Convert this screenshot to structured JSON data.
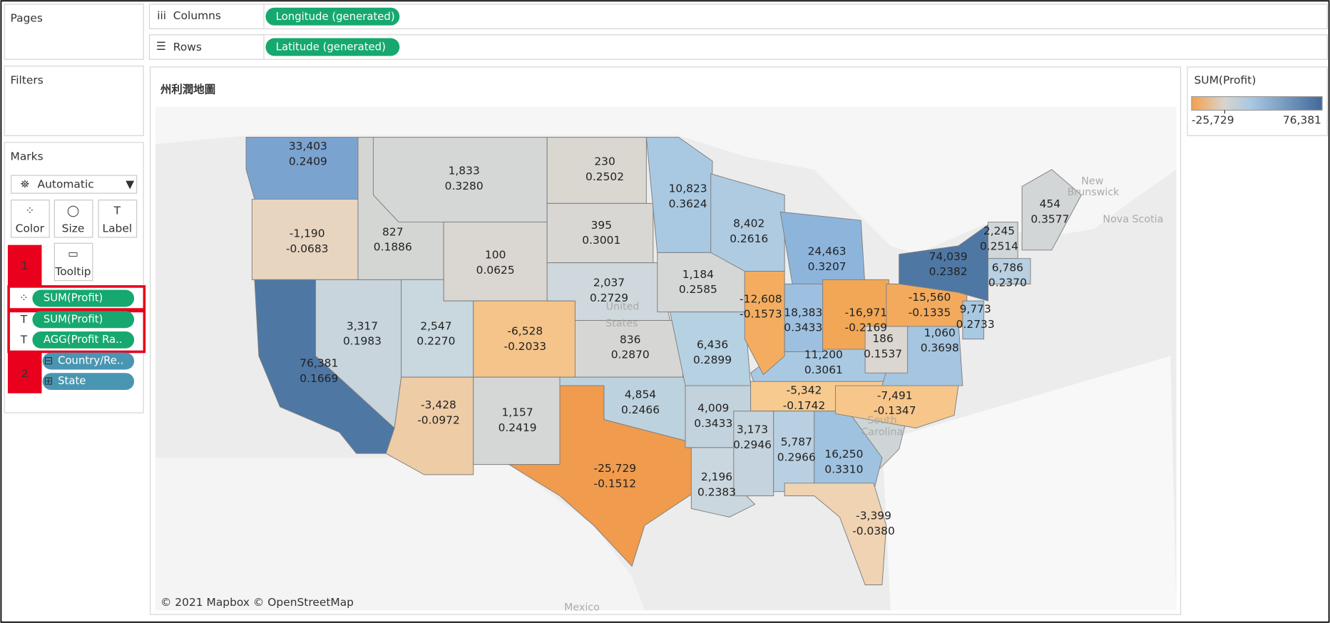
{
  "shelves": {
    "columns_label": "Columns",
    "columns_pill": "Longitude (generated)",
    "rows_label": "Rows",
    "rows_pill": "Latitude (generated)"
  },
  "left_panel": {
    "pages": "Pages",
    "filters": "Filters",
    "marks": "Marks",
    "mark_type": "Automatic",
    "buttons": [
      "Color",
      "Size",
      "Label",
      "Tooltip"
    ],
    "pills": [
      "SUM(Profit)",
      "SUM(Profit)",
      "AGG(Profit Ra..",
      "Country/Re..",
      "State"
    ],
    "annotations": [
      "1",
      "2"
    ]
  },
  "view": {
    "title": "州利潤地圖",
    "attribution": "© 2021 Mapbox © OpenStreetMap",
    "map_labels": [
      "New",
      "Brunswick",
      "Nova Scotia",
      "United",
      "States",
      "South",
      "Carolina",
      "Mexico"
    ],
    "states": [
      {
        "profit": "33,403",
        "ratio": "0.2409",
        "color": "#7ba3cf"
      },
      {
        "profit": "-1,190",
        "ratio": "-0.0683",
        "color": "#e8d5c0"
      },
      {
        "profit": "76,381",
        "ratio": "0.1669",
        "color": "#4e77a4"
      },
      {
        "profit": "3,317",
        "ratio": "0.1983",
        "color": "#c8d5dc"
      },
      {
        "profit": "827",
        "ratio": "0.1886",
        "color": "#d4d6d4"
      },
      {
        "profit": "1,833",
        "ratio": "0.3280",
        "color": "#d5d7d6"
      },
      {
        "profit": "100",
        "ratio": "0.0625",
        "color": "#dad7d2"
      },
      {
        "profit": "2,547",
        "ratio": "0.2270",
        "color": "#c9d7de"
      },
      {
        "profit": "-6,528",
        "ratio": "-0.2033",
        "color": "#f5c48a"
      },
      {
        "profit": "-3,428",
        "ratio": "-0.0972",
        "color": "#eecca6"
      },
      {
        "profit": "1,157",
        "ratio": "0.2419",
        "color": "#d5d7d6"
      },
      {
        "profit": "230",
        "ratio": "0.2502",
        "color": "#dad7d1"
      },
      {
        "profit": "395",
        "ratio": "0.3001",
        "color": "#d9d7d3"
      },
      {
        "profit": "2,037",
        "ratio": "0.2729",
        "color": "#cfd8dc"
      },
      {
        "profit": "836",
        "ratio": "0.2870",
        "color": "#d6d7d5"
      },
      {
        "profit": "4,854",
        "ratio": "0.2466",
        "color": "#bdd2df"
      },
      {
        "profit": "-25,729",
        "ratio": "-0.1512",
        "color": "#f09b4d"
      },
      {
        "profit": "10,823",
        "ratio": "0.3624",
        "color": "#a9c9e3"
      },
      {
        "profit": "1,184",
        "ratio": "0.2585",
        "color": "#d5d7d6"
      },
      {
        "profit": "6,436",
        "ratio": "0.2899",
        "color": "#b6d1e2"
      },
      {
        "profit": "4,009",
        "ratio": "0.3433",
        "color": "#c3d3de"
      },
      {
        "profit": "2,196",
        "ratio": "0.2383",
        "color": "#cad7de"
      },
      {
        "profit": "8,402",
        "ratio": "0.2616",
        "color": "#aecbe2"
      },
      {
        "profit": "11,200",
        "ratio": "0.3061",
        "color": "#a9c9e3"
      },
      {
        "profit": "-12,608",
        "ratio": "-0.1573",
        "color": "#f4ad60"
      },
      {
        "profit": "24,463",
        "ratio": "0.3207",
        "color": "#8db5dc"
      },
      {
        "profit": "18,383",
        "ratio": "0.3433",
        "color": "#9dc0e0"
      },
      {
        "profit": "-16,971",
        "ratio": "-0.2169",
        "color": "#f2a757"
      },
      {
        "profit": "-5,342",
        "ratio": "-0.1742",
        "color": "#f7ca90"
      },
      {
        "profit": "3,173",
        "ratio": "0.2946",
        "color": "#c4d3dd"
      },
      {
        "profit": "5,787",
        "ratio": "0.2966",
        "color": "#b8d0e1"
      },
      {
        "profit": "16,250",
        "ratio": "0.3310",
        "color": "#9fc2e0"
      },
      {
        "profit": "-3,399",
        "ratio": "-0.0380",
        "color": "#efd3b2"
      },
      {
        "profit": "-7,491",
        "ratio": "-0.1347",
        "color": "#f6c68b"
      },
      {
        "profit": "1,060",
        "ratio": "0.3698",
        "color": "#a5c5e0"
      },
      {
        "profit": "186",
        "ratio": "0.1537",
        "color": "#dcd6d0"
      },
      {
        "profit": "-15,560",
        "ratio": "-0.1335",
        "color": "#f3aa5c"
      },
      {
        "profit": "74,039",
        "ratio": "0.2382",
        "color": "#4e77a4"
      },
      {
        "profit": "9,773",
        "ratio": "0.2733",
        "color": "#a9c9e3"
      },
      {
        "profit": "2,245",
        "ratio": "0.2514",
        "color": "#d0d7da"
      },
      {
        "profit": "454",
        "ratio": "0.3577",
        "color": "#d3d6d6"
      },
      {
        "profit": "6,786",
        "ratio": "0.2370",
        "color": "#b8d0e1"
      }
    ]
  },
  "legend": {
    "title": "SUM(Profit)",
    "min": "-25,729",
    "max": "76,381"
  }
}
